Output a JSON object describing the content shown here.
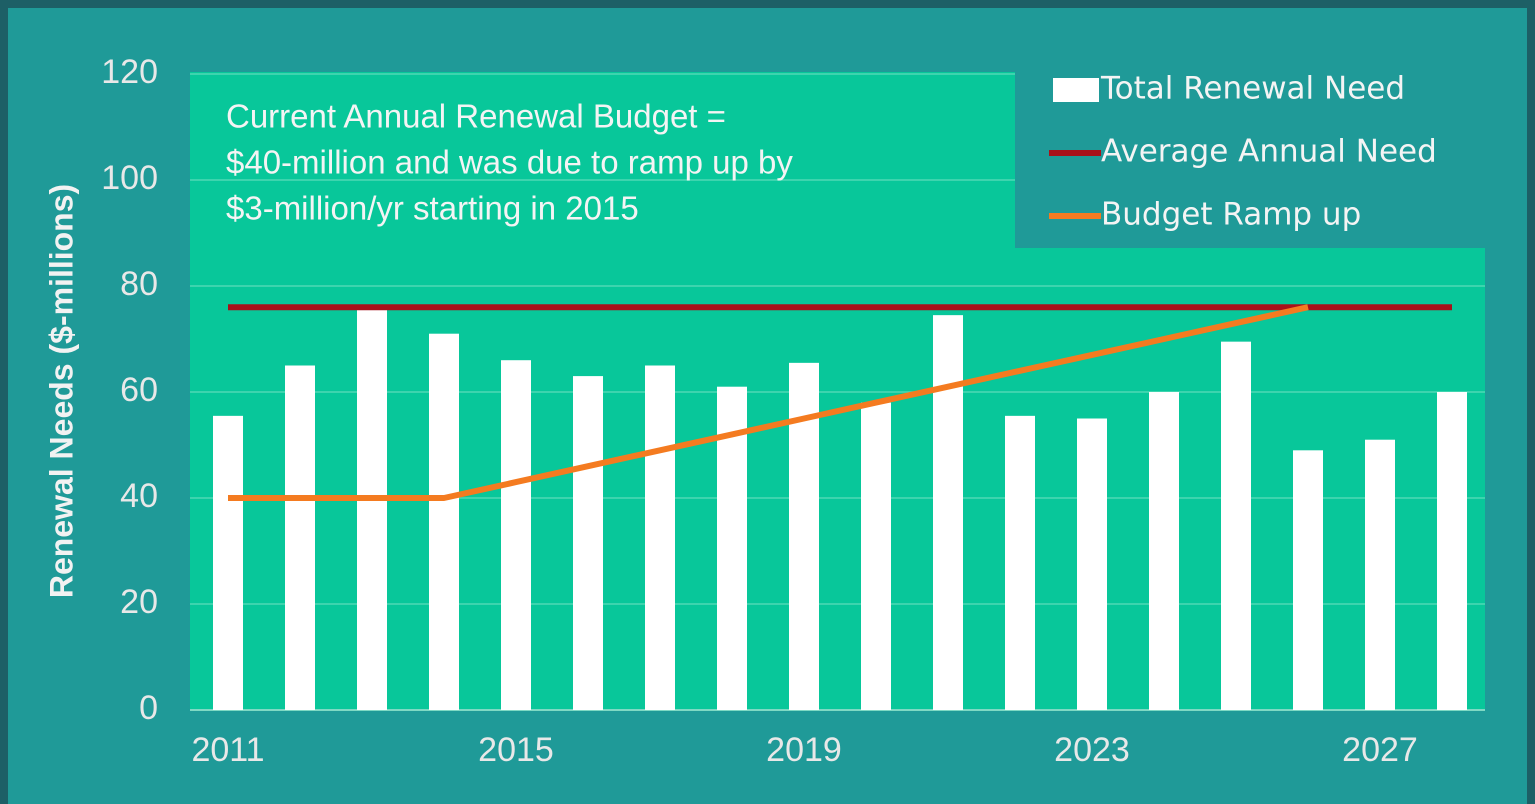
{
  "chart_data": {
    "type": "bar",
    "ylabel": "Renewal Needs ($-millions)",
    "annotation": [
      "Current Annual Renewal Budget =",
      "$40-million and was due to ramp up by",
      "$3-million/yr starting in 2015"
    ],
    "categories": [
      "2011",
      null,
      null,
      null,
      "2015",
      null,
      null,
      null,
      "2019",
      null,
      null,
      null,
      "2023",
      null,
      null,
      null,
      "2027",
      null
    ],
    "series": [
      {
        "name": "Total Renewal Need",
        "type": "bar",
        "color": "#ffffff",
        "values": [
          55.5,
          65,
          76,
          71,
          66,
          63,
          65,
          61,
          65.5,
          58,
          74.5,
          55.5,
          55,
          60,
          69.5,
          49,
          51,
          60
        ]
      },
      {
        "name": "Average Annual Need",
        "type": "line",
        "color": "#a8111a",
        "values": [
          76,
          76,
          76,
          76,
          76,
          76,
          76,
          76,
          76,
          76,
          76,
          76,
          76,
          76,
          76,
          76,
          76,
          76
        ]
      },
      {
        "name": "Budget Ramp up",
        "type": "line",
        "color": "#f47b20",
        "values": [
          40,
          40,
          40,
          40,
          43,
          46,
          49,
          52,
          55,
          58,
          61,
          64,
          67,
          70,
          73,
          76,
          null,
          null
        ]
      }
    ],
    "ylim": [
      0,
      120
    ],
    "yticks": [
      0,
      20,
      40,
      60,
      80,
      100,
      120
    ],
    "grid": true,
    "legend": "upper right"
  }
}
